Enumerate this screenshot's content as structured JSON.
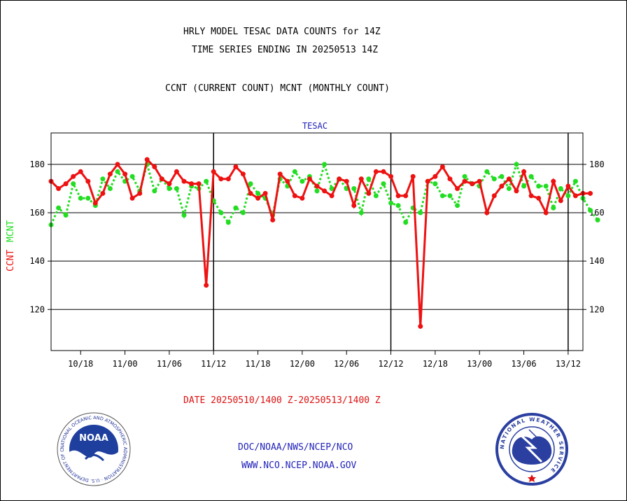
{
  "header": {
    "title": "HRLY MODEL TESAC DATA COUNTS for 14Z",
    "subtitle": "TIME SERIES ENDING IN 20250513 14Z",
    "description": "CCNT (CURRENT COUNT) MCNT (MONTHLY COUNT)"
  },
  "footer": {
    "date_range": "DATE 20250510/1400 Z-20250513/1400 Z",
    "link1": "DOC/NOAA/NWS/NCEP/NCO",
    "link2": "WWW.NCO.NCEP.NOAA.GOV"
  },
  "logos": {
    "left": "NOAA",
    "left_ring": "NATIONAL OCEANIC AND ATMOSPHERIC ADMINISTRATION · U.S. DEPARTMENT OF COMMERCE ·",
    "right_ring": "NATIONAL WEATHER SERVICE"
  },
  "colors": {
    "ccnt": "#ee1111",
    "mcnt": "#22dd22",
    "panel_title": "#2222bb",
    "footer_text": "#2222bb",
    "date_text": "#dd1111"
  },
  "chart_data": {
    "type": "line",
    "title": "TESAC",
    "ylabel_series": [
      "CCNT",
      "MCNT"
    ],
    "y_ticks": [
      120,
      140,
      160,
      180
    ],
    "ylim": [
      103,
      193
    ],
    "x_tick_labels": [
      "10/18",
      "11/00",
      "11/06",
      "11/12",
      "11/18",
      "12/00",
      "12/06",
      "12/12",
      "12/18",
      "13/00",
      "13/06",
      "13/12"
    ],
    "x_tick_hours": [
      4,
      10,
      16,
      22,
      28,
      34,
      40,
      46,
      52,
      58,
      64,
      70
    ],
    "x_hours_start": 0,
    "x_hours_end": 72,
    "day_boundaries_hours": [
      22,
      46,
      70
    ],
    "grid": "horizontal",
    "series": [
      {
        "name": "CCNT",
        "values": [
          173,
          170,
          172,
          175,
          177,
          173,
          164,
          168,
          176,
          180,
          176,
          166,
          168,
          182,
          179,
          174,
          172,
          177,
          173,
          172,
          172,
          130,
          177,
          174,
          174,
          179,
          176,
          168,
          166,
          168,
          157,
          176,
          173,
          167,
          166,
          174,
          171,
          169,
          167,
          174,
          173,
          163,
          174,
          168,
          177,
          177,
          175,
          167,
          167,
          175,
          113,
          173,
          175,
          179,
          174,
          170,
          173,
          172,
          173,
          160,
          167,
          171,
          174,
          169,
          177,
          167,
          166,
          160,
          173,
          165,
          171,
          167,
          168,
          168
        ]
      },
      {
        "name": "MCNT",
        "values": [
          155,
          162,
          159,
          172,
          166,
          166,
          163,
          174,
          170,
          177,
          173,
          175,
          169,
          180,
          169,
          174,
          170,
          170,
          159,
          171,
          170,
          173,
          165,
          160,
          156,
          162,
          160,
          172,
          168,
          166,
          159,
          174,
          171,
          177,
          173,
          175,
          169,
          180,
          170,
          174,
          170,
          170,
          160,
          174,
          167,
          172,
          164,
          163,
          156,
          162,
          160,
          173,
          172,
          167,
          167,
          163,
          175,
          172,
          171,
          177,
          174,
          175,
          170,
          180,
          171,
          175,
          171,
          171,
          162,
          170,
          167,
          173,
          166,
          161,
          157
        ]
      }
    ]
  }
}
